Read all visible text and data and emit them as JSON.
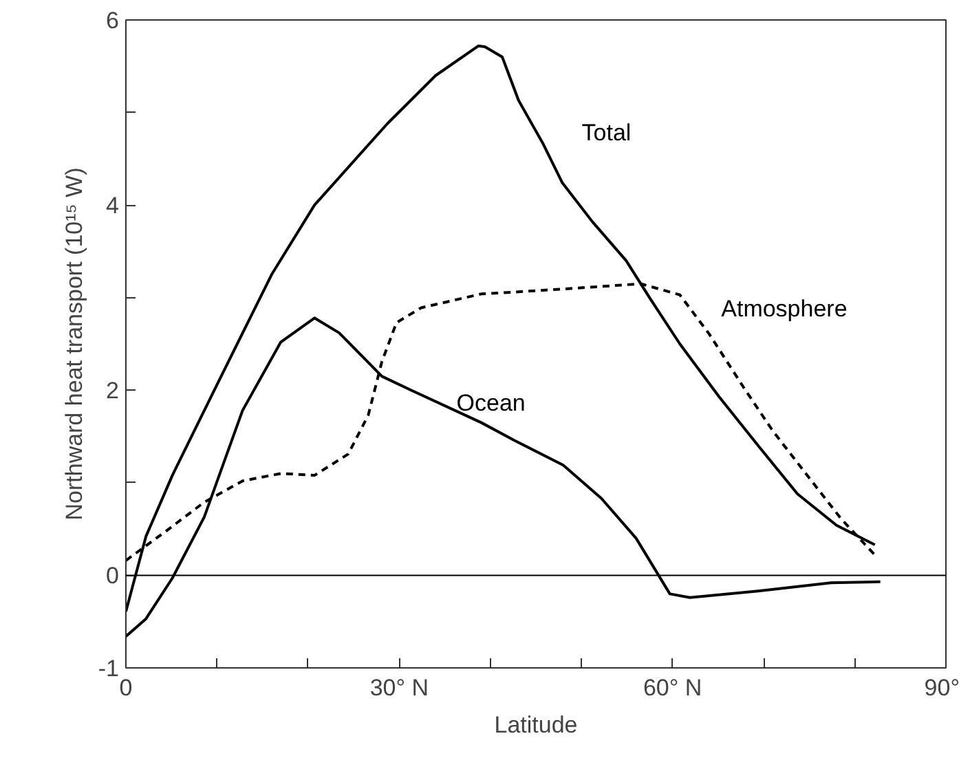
{
  "chart_data": {
    "type": "line",
    "xlabel": "Latitude",
    "ylabel": "Northward heat transport (10¹⁵ W)",
    "xlim": [
      0,
      90
    ],
    "ylim": [
      -1,
      6
    ],
    "xticks": [
      0,
      {
        "value": 10,
        "label": null
      },
      {
        "value": 20,
        "label": null
      },
      {
        "value": 30,
        "label": "30° N"
      },
      {
        "value": 40,
        "label": null
      },
      {
        "value": 50,
        "label": null
      },
      {
        "value": 60,
        "label": "60° N"
      },
      {
        "value": 70,
        "label": null
      },
      {
        "value": 80,
        "label": null
      },
      {
        "value": 90,
        "label": "90°"
      }
    ],
    "yticks": [
      -1,
      0,
      {
        "value": 1,
        "label": null
      },
      2,
      {
        "value": 3,
        "label": null
      },
      4,
      {
        "value": 5,
        "label": null
      },
      6
    ],
    "grid": false,
    "legend": false,
    "marker": "none",
    "ref_lines": [
      {
        "axis": "y",
        "value": 0,
        "color": "#000000",
        "line_style": "solid"
      }
    ],
    "series": [
      {
        "name": "Total",
        "color": "#000000",
        "line_style": "solid",
        "x": [
          0,
          2.2,
          5.1,
          10.2,
          16,
          20.7,
          28.7,
          34,
          38.7,
          39.4,
          41.3,
          43.1,
          45.8,
          47.9,
          51.2,
          54.9,
          57.6,
          60.8,
          65.1,
          69.4,
          73.7,
          78,
          82.2
        ],
        "values": [
          -0.39,
          0.42,
          1.08,
          2.1,
          3.25,
          4.0,
          4.88,
          5.4,
          5.72,
          5.71,
          5.6,
          5.13,
          4.66,
          4.24,
          3.82,
          3.4,
          2.98,
          2.5,
          1.93,
          1.4,
          0.88,
          0.54,
          0.33
        ]
      },
      {
        "name": "Atmosphere",
        "color": "#000000",
        "line_style": "dashed",
        "x": [
          0,
          4.3,
          8.6,
          12.8,
          17,
          20.7,
          24.4,
          26.6,
          28.1,
          29.7,
          32.4,
          39,
          42.6,
          50.6,
          56.5,
          60.8,
          64,
          67.8,
          71,
          74.7,
          78.5,
          82.2
        ],
        "values": [
          0.16,
          0.47,
          0.79,
          1.02,
          1.1,
          1.08,
          1.31,
          1.73,
          2.31,
          2.73,
          2.89,
          3.04,
          3.06,
          3.11,
          3.15,
          3.03,
          2.61,
          2.03,
          1.56,
          1.09,
          0.61,
          0.22
        ]
      },
      {
        "name": "Ocean",
        "color": "#000000",
        "line_style": "solid",
        "x": [
          0,
          2.2,
          5.1,
          8.6,
          12.8,
          17,
          20.7,
          23.4,
          28.1,
          31.3,
          39,
          42.6,
          48,
          52.2,
          56,
          59.7,
          61.9,
          69.4,
          77.4,
          82.8
        ],
        "values": [
          -0.66,
          -0.47,
          -0.03,
          0.63,
          1.78,
          2.52,
          2.78,
          2.62,
          2.15,
          2.0,
          1.65,
          1.46,
          1.19,
          0.83,
          0.4,
          -0.2,
          -0.24,
          -0.17,
          -0.08,
          -0.07
        ]
      }
    ]
  }
}
